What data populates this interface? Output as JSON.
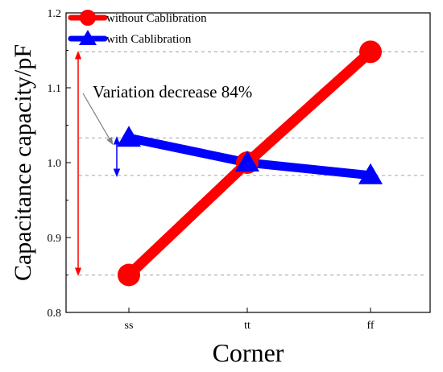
{
  "chart_data": {
    "type": "line",
    "title": "",
    "xlabel": "Corner",
    "ylabel": "Capacitance capacity/pF",
    "categories": [
      "ss",
      "tt",
      "ff"
    ],
    "ylim": [
      0.8,
      1.2
    ],
    "yticks": [
      "0.8",
      "0.9",
      "1.0",
      "1.1",
      "1.2"
    ],
    "series": [
      {
        "name": "without Cablibration",
        "values": [
          0.85,
          1.0,
          1.148
        ],
        "color": "#ff0000",
        "marker": "circle"
      },
      {
        "name": "with Cablibration",
        "values": [
          1.033,
          1.0,
          0.983
        ],
        "color": "#0000ff",
        "marker": "triangle"
      }
    ],
    "reference_lines": [
      1.148,
      1.033,
      0.983,
      0.85
    ],
    "annotation": "Variation decrease 84%",
    "legend_position": "top-left",
    "grid": false
  }
}
